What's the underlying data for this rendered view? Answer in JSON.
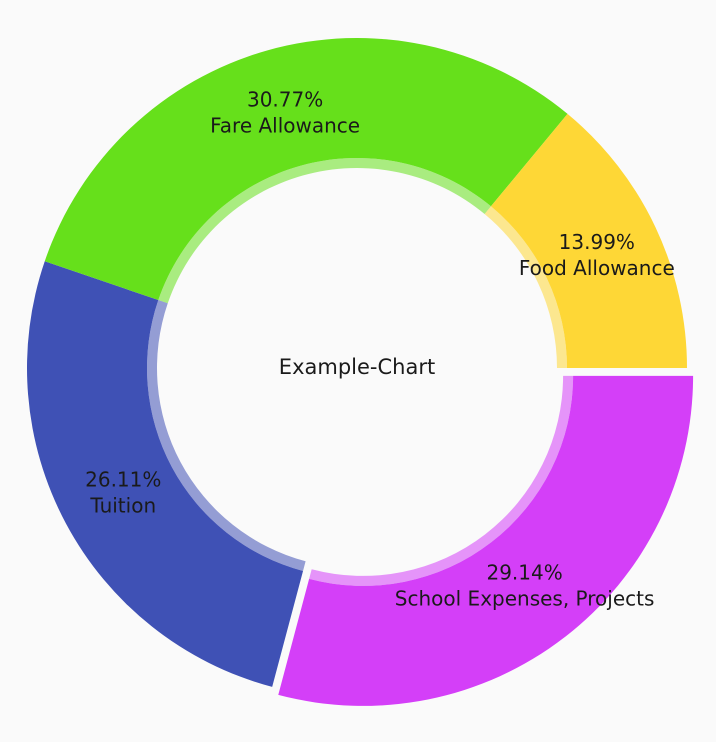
{
  "chart_data": {
    "type": "pie",
    "style": "donut",
    "center_label": "Example-Chart",
    "slices": [
      {
        "label": "School Expenses, Projects",
        "value": 29.14,
        "percent_text": "29.14%",
        "color": "#d43ff8",
        "exploded": true
      },
      {
        "label": "Tuition",
        "value": 26.11,
        "percent_text": "26.11%",
        "color": "#3f51b5",
        "exploded": false
      },
      {
        "label": "Fare Allowance",
        "value": 30.77,
        "percent_text": "30.77%",
        "color": "#66e01b",
        "exploded": false
      },
      {
        "label": "Food Allowance",
        "value": 13.99,
        "percent_text": "13.99%",
        "color": "#fed736",
        "exploded": false
      }
    ],
    "start_angle": "3 o'clock",
    "direction": "clockwise"
  }
}
